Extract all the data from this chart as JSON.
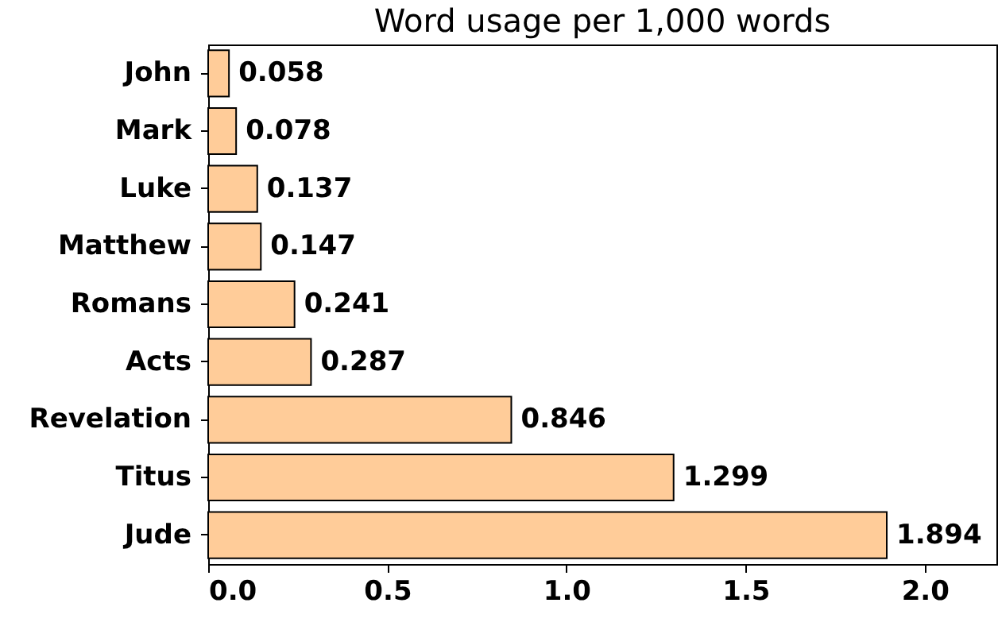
{
  "chart_data": {
    "type": "bar",
    "orientation": "horizontal",
    "title": "Word usage per 1,000 words",
    "categories": [
      "John",
      "Mark",
      "Luke",
      "Matthew",
      "Romans",
      "Acts",
      "Revelation",
      "Titus",
      "Jude"
    ],
    "values": [
      0.058,
      0.078,
      0.137,
      0.147,
      0.241,
      0.287,
      0.846,
      1.299,
      1.894
    ],
    "color": "#ffcc99",
    "data_labels": true,
    "xlim": [
      0,
      2.2
    ],
    "xticks": [
      {
        "value": 0,
        "label": "0.0"
      },
      0.5,
      {
        "value": 1,
        "label": "1.0"
      },
      1.5,
      {
        "value": 2,
        "label": "2.0"
      }
    ]
  }
}
